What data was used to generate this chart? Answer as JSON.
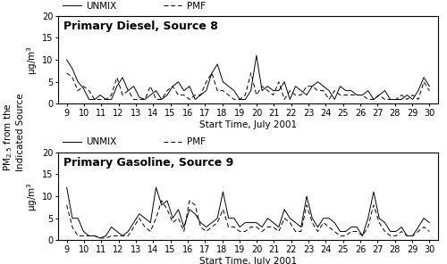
{
  "x_ticks": [
    9,
    10,
    11,
    12,
    13,
    14,
    15,
    16,
    17,
    18,
    19,
    20,
    21,
    22,
    23,
    24,
    25,
    26,
    27,
    28,
    29,
    30
  ],
  "xlabel": "Start Time, July 2001",
  "ylabel_shared": "PM$_{2.5}$ from the\nIndicated Source",
  "ylabel_unit": "μg/m$^3$",
  "title1": "Primary Diesel, Source 8",
  "title2": "Primary Gasoline, Source 9",
  "ylim": [
    0,
    20
  ],
  "yticks": [
    0,
    5,
    10,
    15,
    20
  ],
  "diesel_unmix": [
    10,
    8,
    5,
    3.5,
    1,
    1,
    2,
    1,
    1,
    4,
    6,
    3,
    4,
    1.5,
    1,
    2,
    3,
    1,
    2,
    4,
    5,
    3,
    4,
    1,
    2,
    3,
    7,
    9,
    5,
    4,
    3,
    1,
    1,
    3,
    11,
    3,
    4,
    3,
    3,
    5,
    1,
    4,
    3,
    2,
    4,
    5,
    4,
    3,
    1,
    4,
    3,
    3,
    2,
    2,
    3,
    1,
    2,
    3,
    1,
    1,
    1,
    2,
    1,
    3,
    6,
    4
  ],
  "diesel_pmf": [
    7,
    6,
    3,
    4,
    3,
    1,
    1,
    1,
    2,
    6,
    2,
    3,
    1,
    1,
    1,
    4,
    1,
    1,
    3,
    4,
    2,
    2,
    1,
    2,
    2,
    5,
    7,
    3,
    3,
    2,
    1,
    1,
    2,
    7,
    2,
    4,
    3,
    2,
    5,
    1,
    3,
    2,
    2,
    4,
    4,
    3,
    3,
    1,
    3,
    2,
    2,
    2,
    2,
    2,
    1,
    1,
    2,
    1,
    1,
    1,
    2,
    1,
    2,
    1,
    5,
    3
  ],
  "gasoline_unmix": [
    12,
    5,
    5,
    2,
    1,
    1,
    0.5,
    1,
    3,
    2,
    1,
    2,
    4,
    6,
    5,
    4,
    12,
    8,
    9,
    5,
    7,
    3,
    7,
    6,
    4,
    3,
    4,
    5,
    11,
    5,
    5,
    3,
    4,
    4,
    4,
    3,
    5,
    4,
    3,
    7,
    5,
    4,
    3,
    10,
    5,
    3,
    5,
    5,
    4,
    2,
    2,
    3,
    3,
    1,
    5,
    11,
    5,
    4,
    2,
    2,
    3,
    1,
    1,
    3,
    5,
    4
  ],
  "gasoline_pmf": [
    8,
    3,
    1,
    1,
    1,
    1,
    0.5,
    0.5,
    1,
    1,
    1,
    1,
    3,
    5,
    3,
    2,
    5,
    9,
    7,
    4,
    5,
    2,
    9,
    8,
    3,
    2,
    3,
    4,
    7,
    3,
    3,
    2,
    2,
    3,
    3,
    2,
    3,
    3,
    2,
    5,
    4,
    2,
    2,
    8,
    4,
    2,
    4,
    3,
    2,
    1,
    1,
    2,
    2,
    1,
    3,
    8,
    4,
    2,
    1,
    1,
    2,
    1,
    1,
    2,
    3,
    2
  ],
  "line_color": "black",
  "bg_color": "white",
  "legend_fontsize": 7.5,
  "title_fontsize": 9,
  "tick_fontsize": 7,
  "label_fontsize": 7.5,
  "unit_fontsize": 7.5
}
